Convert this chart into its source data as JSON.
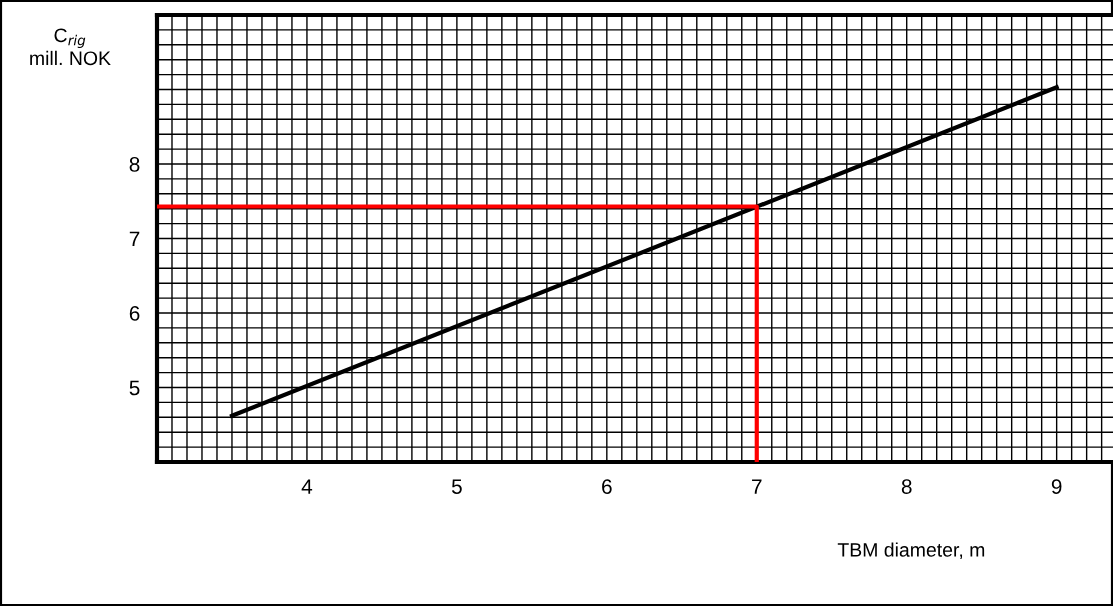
{
  "chart_data": {
    "type": "line",
    "xlabel": "TBM diameter, m",
    "ylabel": "C$_{rig}$\nmill. NOK",
    "series": [
      {
        "color": "#000000",
        "x": [
          3.5,
          9
        ],
        "values": [
          4.62,
          9.03
        ]
      },
      {
        "color": "#ff0000",
        "x": [
          3,
          7,
          7
        ],
        "values": [
          7.43,
          7.43,
          4
        ]
      }
    ],
    "xlim": [
      3,
      9.45
    ],
    "ylim": [
      4,
      10
    ],
    "xticks": [
      4,
      5,
      6,
      7,
      8,
      9
    ],
    "yticks": [
      5,
      6,
      7,
      8
    ],
    "grid": true,
    "marker": "none",
    "line_style": "solid"
  }
}
